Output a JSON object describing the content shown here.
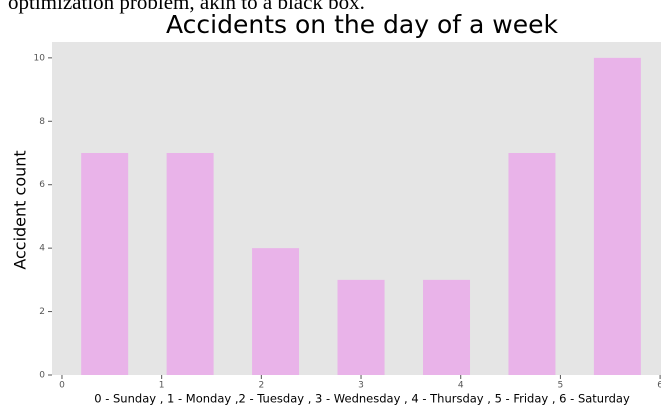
{
  "page_text": "optimization problem, akin to a black box.",
  "chart_data": {
    "type": "histogram",
    "title": "Accidents on the day of a week",
    "ylabel": "Accident count",
    "xlabel": "0 - Sunday ,  1 - Monday  ,2 - Tuesday , 3 - Wednesday , 4 - Thursday , 5 - Friday , 6 - Saturday",
    "bins": [
      0,
      0.857,
      1.714,
      2.571,
      3.429,
      4.286,
      5.143,
      6
    ],
    "counts": [
      7,
      7,
      4,
      3,
      3,
      7,
      10
    ],
    "color": "#e9b3e9",
    "xlim": [
      -0.1,
      6.3
    ],
    "ylim": [
      0,
      10.5
    ],
    "xticks": [
      0,
      1,
      2,
      3,
      4,
      5,
      6
    ],
    "yticks": [
      0,
      2,
      4,
      6,
      8,
      10
    ],
    "grid": false
  }
}
